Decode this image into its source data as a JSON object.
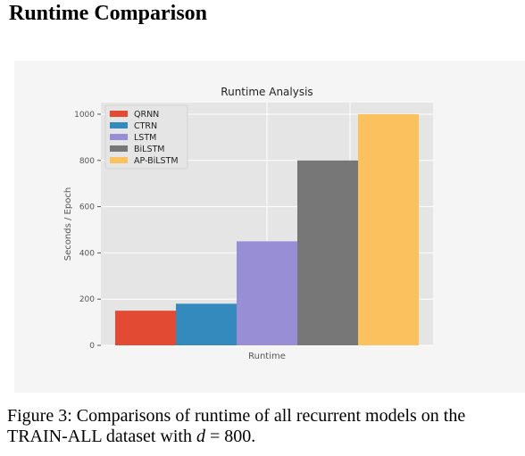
{
  "heading": "Runtime Comparison",
  "caption": {
    "prefix": "Figure 3: Comparisons of runtime of all recurrent models on the TRAIN-ALL dataset with ",
    "variable": "d",
    "relation": " = 800."
  },
  "chart_data": {
    "type": "bar",
    "title": "Runtime Analysis",
    "xlabel": "Runtime",
    "ylabel": "Seconds / Epoch",
    "ylim": [
      0,
      1050
    ],
    "yticks": [
      0,
      200,
      400,
      600,
      800,
      1000
    ],
    "grid": true,
    "legend_position": "top-left",
    "series": [
      {
        "name": "QRNN",
        "values": [
          150
        ],
        "color": "#e24a33"
      },
      {
        "name": "CTRN",
        "values": [
          180
        ],
        "color": "#348abd"
      },
      {
        "name": "LSTM",
        "values": [
          450
        ],
        "color": "#988ed5"
      },
      {
        "name": "BiLSTM",
        "values": [
          800
        ],
        "color": "#777777"
      },
      {
        "name": "AP-BiLSTM",
        "values": [
          1000
        ],
        "color": "#fbc15e"
      }
    ]
  }
}
